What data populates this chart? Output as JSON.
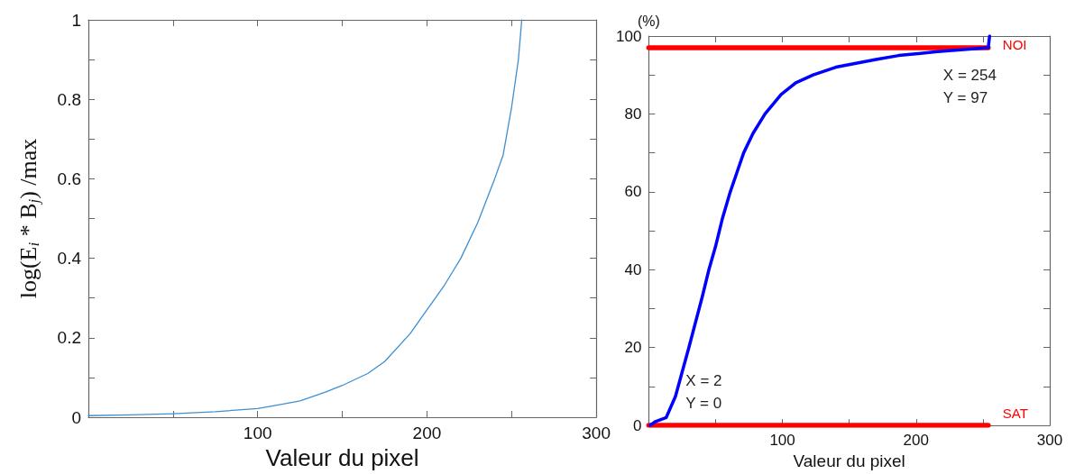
{
  "chart_data": [
    {
      "type": "line",
      "xlabel": "Valeur du pixel",
      "ylabel": "log(E$_{i}$ * B$_{j}$) /max",
      "xlim": [
        0,
        300
      ],
      "xticks": [
        {
          "value": 0,
          "label": null
        },
        {
          "value": 50,
          "label": null
        },
        100,
        {
          "value": 150,
          "label": null
        },
        200,
        {
          "value": 250,
          "label": null
        },
        300
      ],
      "ylim": [
        0,
        1
      ],
      "yticks": [
        0,
        {
          "value": 0.1,
          "label": null
        },
        0.2,
        {
          "value": 0.3,
          "label": null
        },
        0.4,
        {
          "value": 0.5,
          "label": null
        },
        0.6,
        {
          "value": 0.7,
          "label": null
        },
        0.8,
        {
          "value": 0.9,
          "label": null
        },
        1
      ],
      "grid": false,
      "legend": false,
      "marker": "none",
      "series": [
        {
          "color": "#3d8fd1",
          "x": [
            0,
            25,
            50,
            75,
            100,
            115,
            125,
            140,
            150,
            165,
            175,
            190,
            200,
            210,
            220,
            230,
            240,
            245,
            250,
            254,
            256
          ],
          "values": [
            0.004,
            0.006,
            0.009,
            0.014,
            0.022,
            0.033,
            0.041,
            0.063,
            0.08,
            0.11,
            0.14,
            0.21,
            0.27,
            0.33,
            0.4,
            0.49,
            0.6,
            0.66,
            0.78,
            0.9,
            1.0
          ]
        }
      ]
    },
    {
      "type": "line",
      "xlabel": "Valeur du pixel",
      "ylabel": "(%)",
      "xlim": [
        0,
        300
      ],
      "xticks": [
        {
          "value": 0,
          "label": null
        },
        {
          "value": 50,
          "label": null
        },
        100,
        {
          "value": 150,
          "label": null
        },
        200,
        {
          "value": 250,
          "label": null
        },
        300
      ],
      "ylim": [
        0,
        100
      ],
      "yticks": [
        0,
        {
          "value": 10,
          "label": null
        },
        20,
        {
          "value": 30,
          "label": null
        },
        40,
        {
          "value": 50,
          "label": null
        },
        60,
        {
          "value": 70,
          "label": null
        },
        80,
        {
          "value": 90,
          "label": null
        },
        100
      ],
      "grid": false,
      "legend": false,
      "marker": "none",
      "series": [
        {
          "color": "#ff0000",
          "name": "NOI",
          "x": [
            0,
            254
          ],
          "values": [
            97,
            97
          ]
        },
        {
          "color": "#ff0000",
          "name": "SAT",
          "x": [
            0,
            254
          ],
          "values": [
            0,
            0
          ]
        },
        {
          "color": "#0000ff",
          "x": [
            1,
            5,
            13,
            20,
            30,
            40,
            45,
            50,
            55,
            61,
            66,
            71,
            78,
            87,
            99,
            110,
            123,
            140,
            155,
            170,
            187,
            216,
            253,
            254,
            255
          ],
          "values": [
            0,
            1,
            2,
            7.5,
            20,
            33,
            40,
            46,
            53,
            60,
            65,
            70,
            75,
            80,
            85,
            88,
            90,
            92,
            93,
            94,
            95,
            96,
            97,
            97,
            100
          ]
        }
      ],
      "annotations": [
        {
          "text": "X = 254\nY = 97",
          "x": 254,
          "y": 97
        },
        {
          "text": "X = 2\nY = 0",
          "x": 2,
          "y": 0
        }
      ]
    }
  ]
}
